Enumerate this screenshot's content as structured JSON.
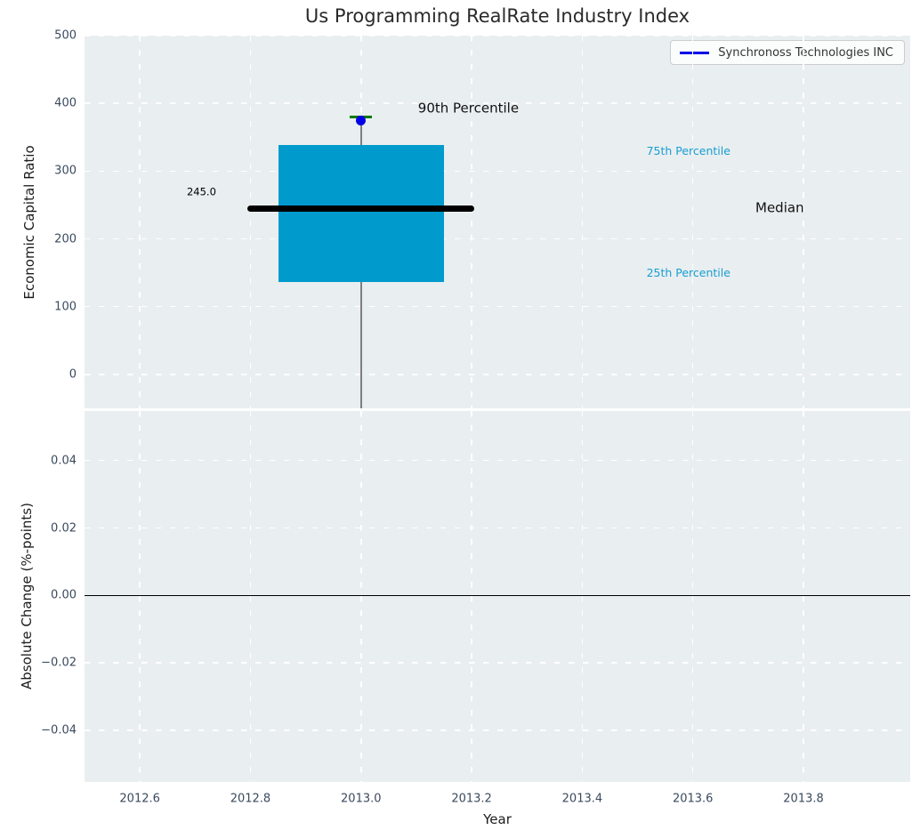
{
  "chart_data": {
    "type": "boxplot",
    "title": "Us Programming RealRate Industry Index",
    "xlabel": "Year",
    "xlim": [
      2012.5,
      2013.993
    ],
    "x_ticks": [
      {
        "v": 2012.6,
        "label": "2012.6"
      },
      {
        "v": 2012.8,
        "label": "2012.8"
      },
      {
        "v": 2013.0,
        "label": "2013.0"
      },
      {
        "v": 2013.2,
        "label": "2013.2"
      },
      {
        "v": 2013.4,
        "label": "2013.4"
      },
      {
        "v": 2013.6,
        "label": "2013.6"
      },
      {
        "v": 2013.8,
        "label": "2013.8"
      }
    ],
    "legend": {
      "label": "Synchronoss Technologies INC",
      "line_color": "#0000e6",
      "position": "upper right"
    },
    "colors": {
      "axes_bg": "#e9eef0",
      "grid": "#ffffff",
      "box": "#009acd",
      "median": "#000000",
      "cap": "#007a00",
      "whisker": "#7e7e7e",
      "company": "#0000e6",
      "tick": "#3a4a5e",
      "cyan_label": "#189ed2"
    },
    "top_panel": {
      "ylabel": "Economic Capital Ratio",
      "ylim": [
        -50,
        500
      ],
      "y_ticks": [
        {
          "v": 0,
          "label": "0"
        },
        {
          "v": 100,
          "label": "100"
        },
        {
          "v": 200,
          "label": "200"
        },
        {
          "v": 300,
          "label": "300"
        },
        {
          "v": 400,
          "label": "400"
        },
        {
          "v": 500,
          "label": "500"
        }
      ],
      "box": {
        "x": 2013.0,
        "median": 245.0,
        "q1": 136,
        "q3": 338,
        "p90": 380,
        "whisker_low": -60,
        "box_halfwidth": 0.15,
        "median_halfwidth": 0.205,
        "cap_halfwidth": 0.02
      },
      "company_point": {
        "x": 2013.0,
        "y": 375
      },
      "annotations": [
        {
          "text": "245.0",
          "x": 2012.738,
          "y": 269,
          "align": "right",
          "size": 11.5,
          "color": "#000000"
        },
        {
          "text": "90th Percentile",
          "x": 2013.103,
          "y": 392,
          "align": "left",
          "size": 15,
          "color": "#111111"
        },
        {
          "text": "75th Percentile",
          "x": 2013.592,
          "y": 329,
          "align": "center",
          "size": 12.5,
          "color": "#189ed2"
        },
        {
          "text": "Median",
          "x": 2013.757,
          "y": 246,
          "align": "center",
          "size": 15,
          "color": "#111111"
        },
        {
          "text": "25th Percentile",
          "x": 2013.592,
          "y": 150,
          "align": "center",
          "size": 12.5,
          "color": "#189ed2"
        }
      ]
    },
    "bottom_panel": {
      "ylabel": "Absolute Change (%-points)",
      "ylim": [
        -0.0553,
        0.0547
      ],
      "y_ticks": [
        {
          "v": 0.04,
          "label": "0.04"
        },
        {
          "v": 0.02,
          "label": "0.02"
        },
        {
          "v": 0.0,
          "label": "0.00"
        },
        {
          "v": -0.02,
          "label": "−0.02"
        },
        {
          "v": -0.04,
          "label": "−0.04"
        }
      ],
      "zero_line": 0.0
    }
  }
}
